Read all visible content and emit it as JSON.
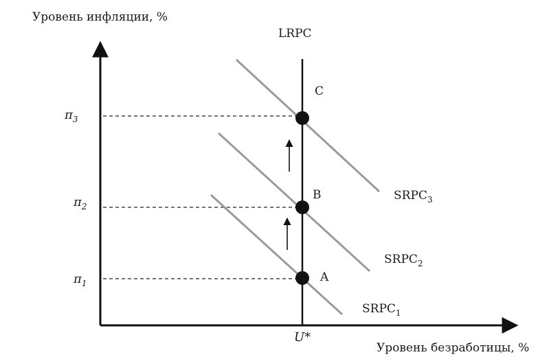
{
  "diagram": {
    "y_axis_label": "Уровень инфляции, %",
    "x_axis_label": "Уровень безработицы, %",
    "lrpc_label": "LRPC",
    "u_star_label": "U*",
    "inflation_levels": [
      {
        "symbol": "π",
        "subscript": "3"
      },
      {
        "symbol": "π",
        "subscript": "2"
      },
      {
        "symbol": "π",
        "subscript": "1"
      }
    ],
    "points": [
      {
        "label": "C"
      },
      {
        "label": "B"
      },
      {
        "label": "A"
      }
    ],
    "curves": [
      {
        "name": "SRPC",
        "subscript": "3"
      },
      {
        "name": "SRPC",
        "subscript": "2"
      },
      {
        "name": "SRPC",
        "subscript": "1"
      }
    ]
  }
}
